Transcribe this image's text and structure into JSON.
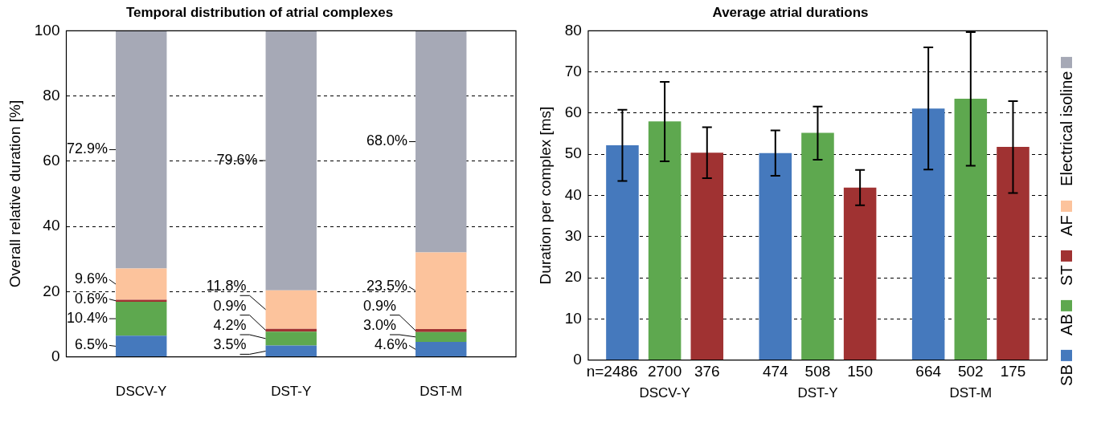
{
  "chart_data": [
    {
      "type": "bar",
      "title": "Temporal distribution of atrial complexes",
      "ylabel": "Overall relative duration [%]",
      "categories": [
        "DSCV-Y",
        "DST-Y",
        "DST-M"
      ],
      "stacked": true,
      "ylim": [
        0,
        100
      ],
      "yticks": [
        0,
        20,
        40,
        60,
        80,
        100
      ],
      "grid": "y",
      "legend": "right",
      "series": [
        {
          "name": "SB",
          "color": "#4579bd",
          "values": [
            6.5,
            3.5,
            4.6
          ],
          "value_labels": [
            "6.5%",
            "3.5%",
            "4.6%"
          ]
        },
        {
          "name": "AB",
          "color": "#5ea84f",
          "values": [
            10.4,
            4.2,
            3.0
          ],
          "value_labels": [
            "10.4%",
            "4.2%",
            "3.0%"
          ]
        },
        {
          "name": "ST",
          "color": "#a03232",
          "values": [
            0.6,
            0.9,
            0.9
          ],
          "value_labels": [
            "0.6%",
            "0.9%",
            "0.9%"
          ]
        },
        {
          "name": "AF",
          "color": "#fcc39c",
          "values": [
            9.6,
            11.8,
            23.5
          ],
          "value_labels": [
            "9.6%",
            "11.8%",
            "23.5%"
          ]
        },
        {
          "name": "Electrical isoline",
          "color": "#a6a9b6",
          "values": [
            72.9,
            79.6,
            68.0
          ],
          "value_labels": [
            "72.9%",
            "79.6%",
            "68.0%"
          ]
        }
      ]
    },
    {
      "type": "bar",
      "title": "Average atrial durations",
      "ylabel": "Duration per complex [ms]",
      "categories": [
        "DSCV-Y",
        "DST-Y",
        "DST-M"
      ],
      "ylim": [
        0,
        80
      ],
      "yticks": [
        0,
        10,
        20,
        30,
        40,
        50,
        60,
        70,
        80
      ],
      "grid": "y",
      "legend": "right",
      "annotations": [
        "n=2486",
        "2700",
        "376",
        "474",
        "508",
        "150",
        "664",
        "502",
        "175"
      ],
      "series": [
        {
          "name": "SB",
          "color": "#4579bd",
          "values": [
            52.2,
            50.3,
            61.1
          ],
          "errors": [
            [
              43.5,
              60.8
            ],
            [
              44.8,
              55.8
            ],
            [
              46.3,
              76.0
            ]
          ]
        },
        {
          "name": "AB",
          "color": "#5ea84f",
          "values": [
            58.0,
            55.2,
            63.5
          ],
          "errors": [
            [
              48.3,
              67.6
            ],
            [
              48.7,
              61.6
            ],
            [
              47.2,
              79.7
            ]
          ]
        },
        {
          "name": "ST",
          "color": "#a03232",
          "values": [
            50.4,
            41.9,
            51.8
          ],
          "errors": [
            [
              44.2,
              56.6
            ],
            [
              37.6,
              46.2
            ],
            [
              40.6,
              62.9
            ]
          ]
        }
      ]
    }
  ]
}
